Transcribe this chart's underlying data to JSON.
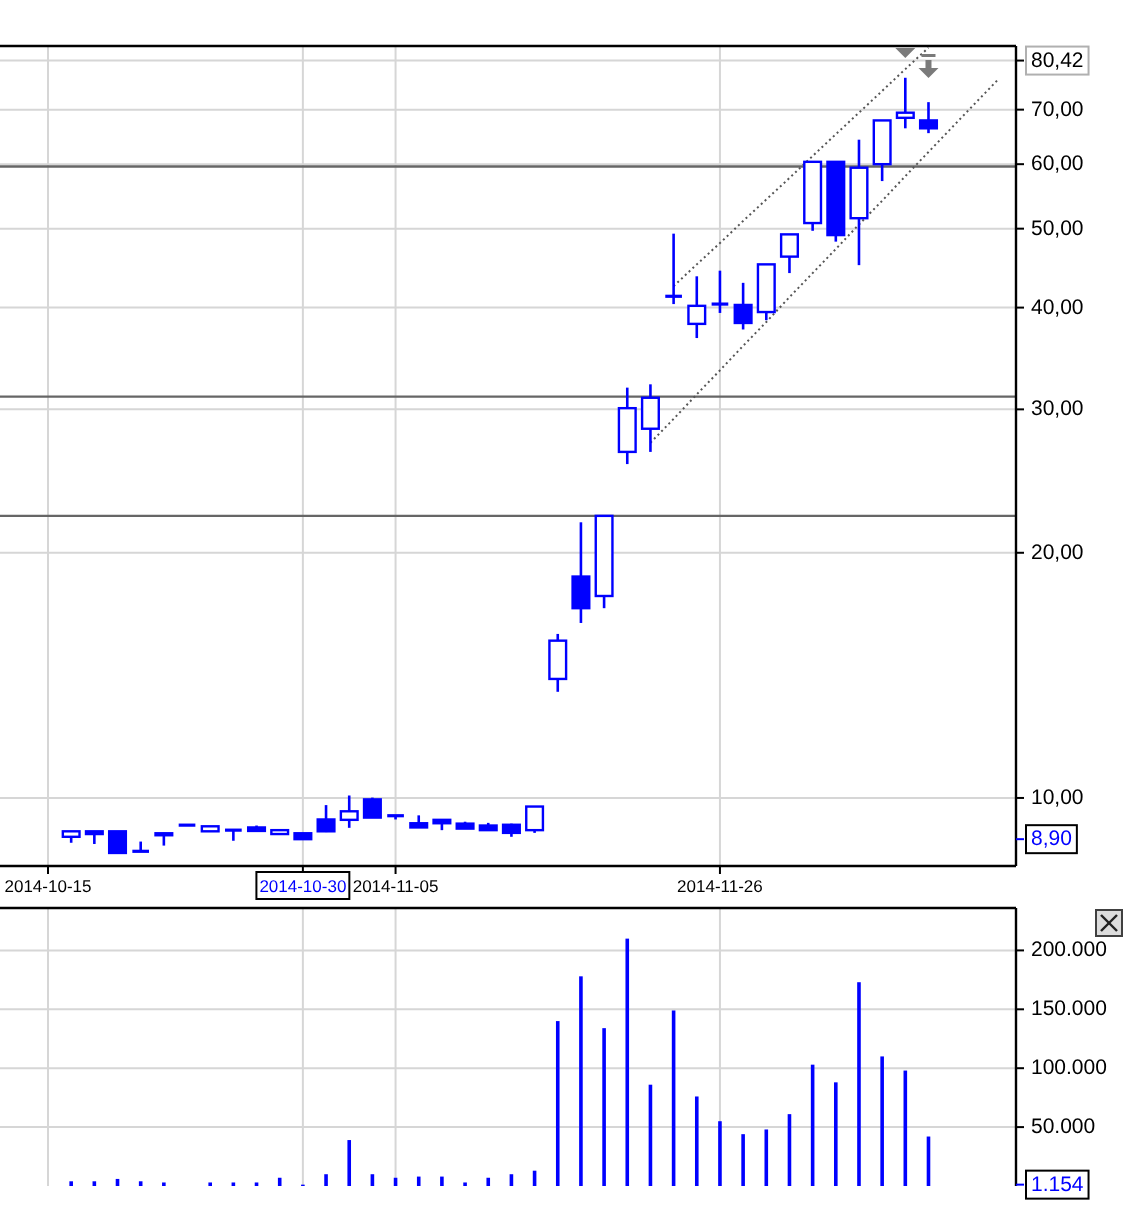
{
  "chart_data": [
    {
      "type": "candlestick",
      "color": "#0000ff",
      "categories": [
        "2014-10-15",
        null,
        null,
        null,
        null,
        null,
        null,
        null,
        null,
        null,
        null,
        "2014-10-30",
        null,
        null,
        null,
        "2014-11-05",
        null,
        null,
        null,
        null,
        null,
        null,
        null,
        null,
        null,
        null,
        null,
        null,
        null,
        "2014-11-26",
        null,
        null,
        null,
        null,
        null,
        null,
        null,
        null,
        null,
        null,
        null,
        null
      ],
      "ohlc": [
        null,
        [
          8.96,
          9.1,
          8.81,
          9.1
        ],
        [
          9.1,
          9.1,
          8.78,
          9.03
        ],
        [
          9.1,
          9.1,
          8.56,
          8.56
        ],
        [
          8.6,
          8.84,
          8.6,
          8.6
        ],
        [
          9.05,
          9.06,
          8.74,
          9.02
        ],
        [
          9.26,
          9.26,
          9.26,
          9.26
        ],
        [
          9.1,
          9.23,
          9.1,
          9.23
        ],
        [
          9.13,
          9.13,
          8.86,
          9.13
        ],
        [
          9.2,
          9.25,
          9.11,
          9.11
        ],
        [
          9.03,
          9.13,
          9.03,
          9.13
        ],
        [
          9.05,
          9.05,
          8.9,
          8.9
        ],
        [
          9.41,
          9.8,
          9.08,
          9.1
        ],
        [
          9.4,
          10.07,
          9.19,
          9.63
        ],
        [
          9.96,
          10.01,
          9.46,
          9.46
        ],
        [
          9.51,
          9.51,
          9.41,
          9.51
        ],
        [
          9.31,
          9.52,
          9.2,
          9.2
        ],
        [
          9.4,
          9.4,
          9.13,
          9.31
        ],
        [
          9.3,
          9.35,
          9.17,
          9.17
        ],
        [
          9.25,
          9.32,
          9.13,
          9.13
        ],
        [
          9.27,
          9.3,
          8.96,
          9.06
        ],
        [
          9.13,
          9.76,
          9.06,
          9.76
        ],
        [
          14.0,
          15.9,
          13.5,
          15.6
        ],
        [
          18.7,
          21.8,
          16.4,
          17.1
        ],
        [
          17.7,
          22.2,
          17.1,
          22.2
        ],
        [
          26.6,
          31.9,
          25.7,
          30.1
        ],
        [
          28.4,
          32.2,
          26.6,
          31.0
        ],
        [
          41.3,
          49.3,
          40.4,
          41.3
        ],
        [
          38.2,
          43.7,
          36.7,
          40.2
        ],
        [
          40.4,
          44.4,
          39.4,
          40.4
        ],
        [
          40.3,
          42.9,
          37.6,
          38.3
        ],
        [
          39.5,
          45.2,
          38.6,
          45.2
        ],
        [
          46.2,
          49.2,
          44.1,
          49.2
        ],
        [
          50.8,
          60.4,
          49.7,
          60.4
        ],
        [
          60.4,
          60.4,
          48.2,
          49.1
        ],
        [
          51.5,
          64.3,
          45.1,
          59.4
        ],
        [
          60.0,
          67.9,
          57.2,
          67.9
        ],
        [
          68.4,
          76.6,
          66.4,
          69.4
        ],
        [
          67.9,
          71.5,
          65.5,
          66.4
        ],
        null,
        null,
        null
      ],
      "series": [
        {
          "type": "line",
          "color": "#555555",
          "line_style": "dotted",
          "values": [
            null,
            null,
            null,
            null,
            null,
            null,
            null,
            null,
            null,
            null,
            null,
            null,
            null,
            null,
            null,
            null,
            null,
            null,
            null,
            null,
            null,
            null,
            null,
            null,
            null,
            null,
            27.3,
            29.2,
            31.3,
            33.5,
            35.9,
            38.4,
            41.2,
            44.1,
            47.2,
            50.6,
            54.1,
            58.0,
            62.1,
            66.5,
            71.2,
            76.2
          ]
        },
        {
          "type": "line",
          "color": "#555555",
          "line_style": "dotted",
          "values": [
            null,
            null,
            null,
            null,
            null,
            null,
            null,
            null,
            null,
            null,
            null,
            null,
            null,
            null,
            null,
            null,
            null,
            null,
            null,
            null,
            null,
            null,
            null,
            null,
            null,
            null,
            null,
            42.5,
            45.2,
            48.0,
            51.1,
            54.3,
            57.7,
            61.4,
            65.3,
            69.4,
            73.8,
            78.5,
            83.4,
            null,
            null,
            null
          ]
        }
      ],
      "log": true,
      "ylim": [
        8.25,
        83.8
      ],
      "yticks": [
        {
          "value": 8.9,
          "label": "8,90"
        },
        {
          "value": 10,
          "label": "10,00"
        },
        {
          "value": 20,
          "label": "20,00"
        },
        {
          "value": 30,
          "label": "30,00"
        },
        {
          "value": 40,
          "label": "40,00"
        },
        {
          "value": 50,
          "label": "50,00"
        },
        {
          "value": 60,
          "label": "60,00"
        },
        {
          "value": 70,
          "label": "70,00"
        },
        {
          "value": 80.42,
          "label": "80,42"
        }
      ],
      "grid": true,
      "ref_lines": [
        {
          "axis": "y",
          "value": 59.6,
          "color": "#666666"
        },
        {
          "axis": "y",
          "value": 31.1,
          "color": "#666666"
        },
        {
          "axis": "y",
          "value": 22.2,
          "color": "#666666"
        }
      ]
    },
    {
      "type": "bar",
      "color": "#0000ff",
      "categories": [
        "2014-10-15",
        null,
        null,
        null,
        null,
        null,
        null,
        null,
        null,
        null,
        null,
        "2014-10-30",
        null,
        null,
        null,
        "2014-11-05",
        null,
        null,
        null,
        null,
        null,
        null,
        null,
        null,
        null,
        null,
        null,
        null,
        null,
        "2014-11-26",
        null,
        null,
        null,
        null,
        null,
        null,
        null,
        null,
        null,
        null,
        null,
        null
      ],
      "values": [
        null,
        4000,
        4000,
        6000,
        4000,
        3000,
        null,
        3000,
        3000,
        3000,
        7000,
        1154,
        10000,
        39000,
        10000,
        7000,
        8000,
        8000,
        3000,
        7000,
        10000,
        13000,
        140000,
        178000,
        134000,
        210000,
        86000,
        149000,
        76000,
        55000,
        44000,
        48000,
        61000,
        103000,
        88000,
        173000,
        110000,
        98000,
        42000,
        null,
        null,
        null
      ],
      "ylim": [
        0,
        236000
      ],
      "yticks": [
        {
          "value": 1154,
          "label": "1.154"
        },
        {
          "value": 50000,
          "label": "50.000"
        },
        {
          "value": 100000,
          "label": "100.000"
        },
        {
          "value": 150000,
          "label": "150.000"
        },
        {
          "value": 200000,
          "label": "200.000"
        }
      ],
      "grid": true,
      "tick_labels": "y"
    }
  ]
}
